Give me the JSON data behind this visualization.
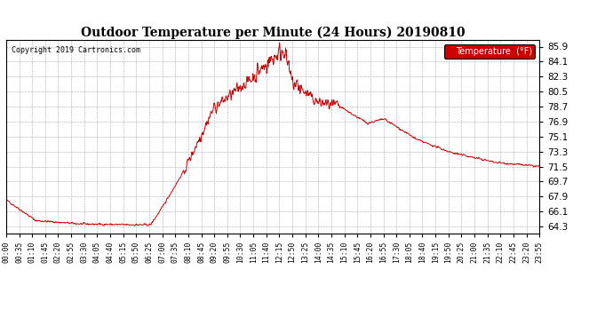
{
  "title": "Outdoor Temperature per Minute (24 Hours) 20190810",
  "copyright_text": "Copyright 2019 Cartronics.com",
  "legend_label": "Temperature  (°F)",
  "line_color": "#cc0000",
  "background_color": "#ffffff",
  "grid_color": "#aaaaaa",
  "yticks": [
    64.3,
    66.1,
    67.9,
    69.7,
    71.5,
    73.3,
    75.1,
    76.9,
    78.7,
    80.5,
    82.3,
    84.1,
    85.9
  ],
  "ylim": [
    63.5,
    86.7
  ],
  "xtick_labels": [
    "00:00",
    "00:35",
    "01:10",
    "01:45",
    "02:20",
    "02:55",
    "03:30",
    "04:05",
    "04:40",
    "05:15",
    "05:50",
    "06:25",
    "07:00",
    "07:35",
    "08:10",
    "08:45",
    "09:20",
    "09:55",
    "10:30",
    "11:05",
    "11:40",
    "12:15",
    "12:50",
    "13:25",
    "14:00",
    "14:35",
    "15:10",
    "15:45",
    "16:20",
    "16:55",
    "17:30",
    "18:05",
    "18:40",
    "19:15",
    "19:50",
    "20:25",
    "21:00",
    "21:35",
    "22:10",
    "22:45",
    "23:20",
    "23:55"
  ]
}
